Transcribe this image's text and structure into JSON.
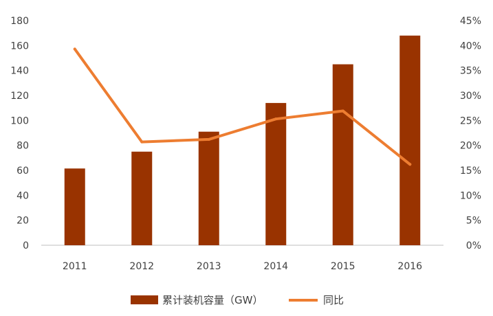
{
  "chart_data": {
    "type": "bar",
    "categories": [
      "2011",
      "2012",
      "2013",
      "2014",
      "2015",
      "2016"
    ],
    "series": [
      {
        "name": "累计装机容量（GW）",
        "type": "bar",
        "axis": "left",
        "color": "#993300",
        "values": [
          61.5,
          75,
          91,
          114,
          145,
          168
        ]
      },
      {
        "name": "同比",
        "type": "line",
        "axis": "right",
        "color": "#ED7D31",
        "values": [
          39.3,
          20.7,
          21.2,
          25.3,
          26.9,
          16.2
        ]
      }
    ],
    "left_axis": {
      "min": 0,
      "max": 180,
      "step": 20,
      "ticks": [
        "0",
        "20",
        "40",
        "60",
        "80",
        "100",
        "120",
        "140",
        "160",
        "180"
      ]
    },
    "right_axis": {
      "min": 0,
      "max": 45,
      "step": 5,
      "ticks": [
        "0%",
        "5%",
        "10%",
        "15%",
        "20%",
        "25%",
        "30%",
        "35%",
        "40%",
        "45%"
      ]
    },
    "grid": false,
    "legend_position": "bottom",
    "title": "",
    "xlabel": "",
    "ylabel": ""
  }
}
